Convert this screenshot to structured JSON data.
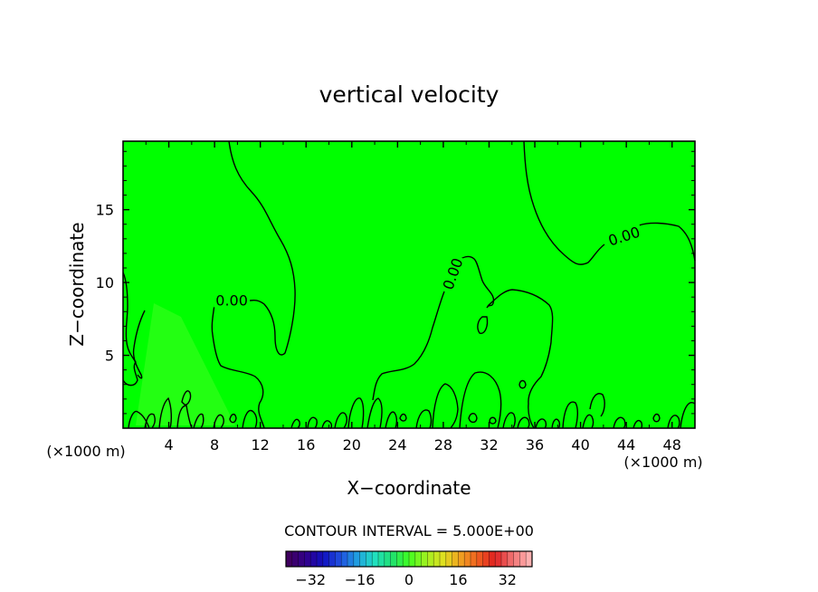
{
  "chart_data": {
    "type": "contour",
    "title": "vertical velocity",
    "xlabel": "X−coordinate",
    "ylabel": "Z−coordinate",
    "x_unit_left": "(×1000 m)",
    "x_unit_right": "(×1000 m)",
    "xlim": [
      0,
      50
    ],
    "ylim": [
      0,
      19.7
    ],
    "x_ticks": [
      4,
      8,
      12,
      16,
      20,
      24,
      28,
      32,
      36,
      40,
      44,
      48
    ],
    "y_ticks": [
      5,
      10,
      15
    ],
    "grid": false,
    "field_color": "#00ff00",
    "contour_color": "#000000",
    "contour_labels": [
      {
        "text": "0.00",
        "x": 9.5,
        "z": 8.8
      },
      {
        "text": "0.00",
        "x": 28.8,
        "z": 10.6
      },
      {
        "text": "0.00",
        "x": 43.8,
        "z": 13.2
      }
    ],
    "contour_interval_text": "CONTOUR INTERVAL = 5.000E+00",
    "colorbar": {
      "ticks": [
        "−32",
        "−16",
        "0",
        "16",
        "32"
      ],
      "tick_values": [
        -32,
        -16,
        0,
        16,
        32
      ],
      "range": [
        -40,
        40
      ],
      "n_bands": 40,
      "colors": [
        "#400060",
        "#30008c",
        "#1010c0",
        "#2050e0",
        "#20a0e0",
        "#20e0c0",
        "#20e070",
        "#40ff20",
        "#a0f020",
        "#e0e020",
        "#f0a020",
        "#f06020",
        "#e02020",
        "#f07070",
        "#ffb0b0"
      ]
    }
  }
}
